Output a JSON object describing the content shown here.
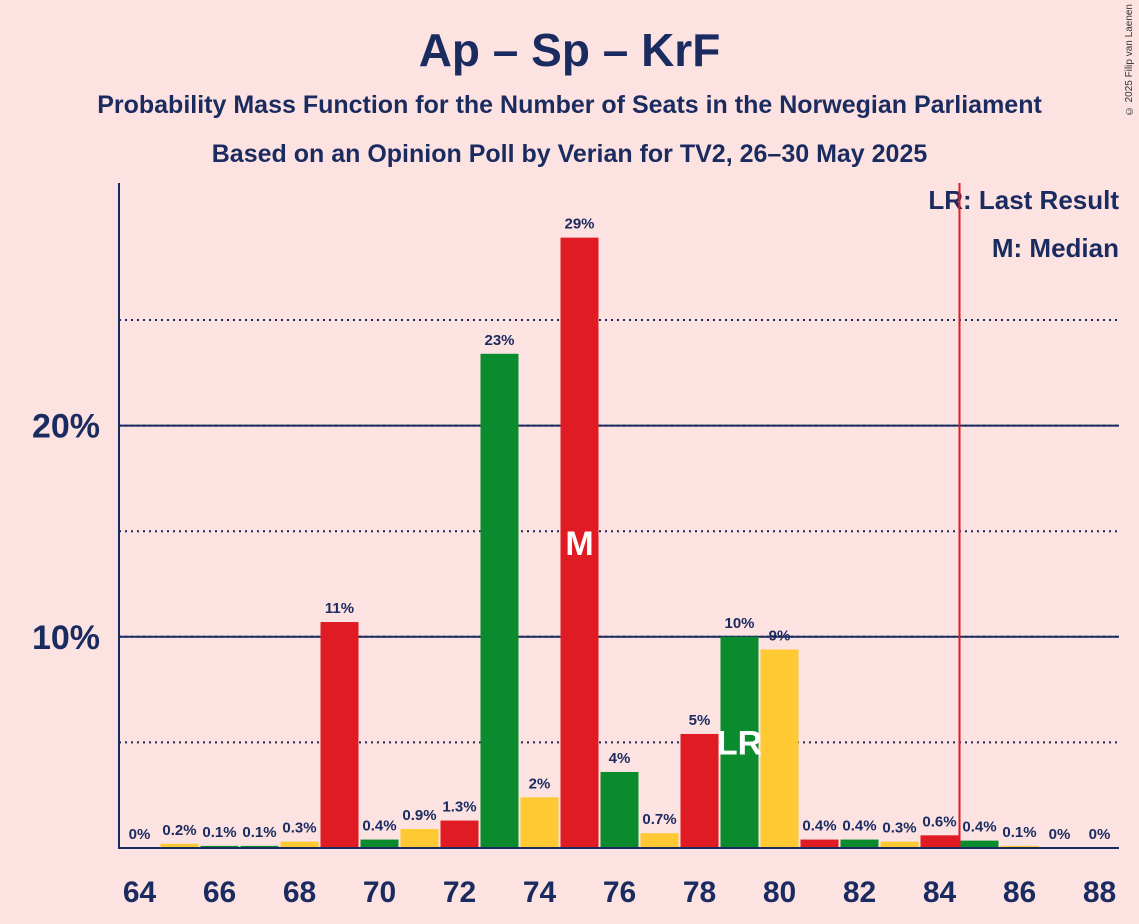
{
  "title": "Ap – Sp – KrF",
  "subtitle_1": "Probability Mass Function for the Number of Seats in the Norwegian Parliament",
  "subtitle_2": "Based on an Opinion Poll by Verian for TV2, 26–30 May 2025",
  "copyright": "© 2025 Filip van Laenen",
  "legend": {
    "last_result": "LR: Last Result",
    "median": "M: Median"
  },
  "colors": {
    "background": "#FDE2E2",
    "red": "#E01B23",
    "green": "#0A8B2E",
    "yellow": "#FFC933",
    "axis": "#1A2B5F",
    "last_result_line": "#E01B23"
  },
  "chart_data": {
    "type": "bar",
    "title": "Ap – Sp – KrF",
    "xlabel": "",
    "ylabel": "",
    "x": [
      64,
      65,
      66,
      67,
      68,
      69,
      70,
      71,
      72,
      73,
      74,
      75,
      76,
      77,
      78,
      79,
      80,
      81,
      82,
      83,
      84,
      85,
      86,
      87,
      88
    ],
    "values": [
      0,
      0.2,
      0.1,
      0.1,
      0.3,
      10.7,
      0.4,
      0.9,
      1.3,
      23.4,
      2.4,
      28.9,
      3.6,
      0.7,
      5.4,
      10.0,
      9.4,
      0.4,
      0.4,
      0.3,
      0.6,
      0.35,
      0.1,
      0,
      0
    ],
    "labels": [
      "0%",
      "0.2%",
      "0.1%",
      "0.1%",
      "0.3%",
      "11%",
      "0.4%",
      "0.9%",
      "1.3%",
      "23%",
      "2%",
      "29%",
      "4%",
      "0.7%",
      "5%",
      "10%",
      "9%",
      "0.4%",
      "0.4%",
      "0.3%",
      "0.6%",
      "0.4%",
      "0.1%",
      "0%",
      "0%"
    ],
    "bar_colors": [
      "red",
      "yellow",
      "green",
      "green",
      "yellow",
      "red",
      "green",
      "yellow",
      "red",
      "green",
      "yellow",
      "red",
      "green",
      "yellow",
      "red",
      "green",
      "yellow",
      "red",
      "green",
      "yellow",
      "red",
      "green",
      "yellow",
      "red",
      "green"
    ],
    "x_ticks": [
      64,
      66,
      68,
      70,
      72,
      74,
      76,
      78,
      80,
      82,
      84,
      86,
      88
    ],
    "y_ticks_labeled": [
      {
        "value": 10,
        "label": "10%"
      },
      {
        "value": 20,
        "label": "20%"
      }
    ],
    "y_gridlines_dotted": [
      5,
      10,
      15,
      20,
      25
    ],
    "ylim": [
      0,
      31.5
    ],
    "median": 75,
    "median_label": "M",
    "last_result": 79,
    "last_result_label": "LR",
    "last_result_line_x": 84.5
  }
}
